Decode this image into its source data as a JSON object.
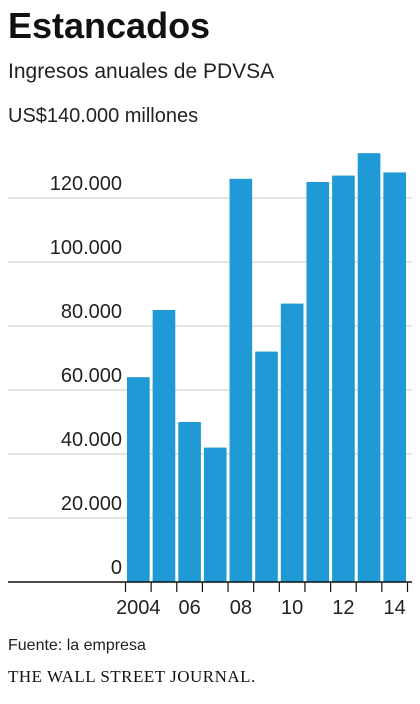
{
  "chart_data": {
    "type": "bar",
    "title": "Estancados",
    "subtitle": "Ingresos anuales de PDVSA",
    "unit_label": "US$140.000 millones",
    "years": [
      2004,
      2005,
      2006,
      2007,
      2008,
      2009,
      2010,
      2011,
      2012,
      2013,
      2014
    ],
    "values": [
      64000,
      85000,
      50000,
      42000,
      126000,
      72000,
      87000,
      125000,
      127000,
      134000,
      128000
    ],
    "ylim": [
      0,
      140000
    ],
    "y_ticks": [
      {
        "value": 0,
        "label": "0"
      },
      {
        "value": 20000,
        "label": "20.000"
      },
      {
        "value": 40000,
        "label": "40.000"
      },
      {
        "value": 60000,
        "label": "60.000"
      },
      {
        "value": 80000,
        "label": "80.000"
      },
      {
        "value": 100000,
        "label": "100.000"
      },
      {
        "value": 120000,
        "label": "120.000"
      }
    ],
    "x_ticks": [
      {
        "year": 2004,
        "label": "2004"
      },
      {
        "year": 2006,
        "label": "06"
      },
      {
        "year": 2008,
        "label": "08"
      },
      {
        "year": 2010,
        "label": "10"
      },
      {
        "year": 2012,
        "label": "12"
      },
      {
        "year": 2014,
        "label": "14"
      }
    ],
    "grid": true,
    "bar_color": "#1f9ad6",
    "grid_color": "#c8c8c8",
    "axis_color": "#111111"
  },
  "footer": {
    "source": "Fuente: la empresa",
    "brand": "THE WALL STREET JOURNAL."
  }
}
